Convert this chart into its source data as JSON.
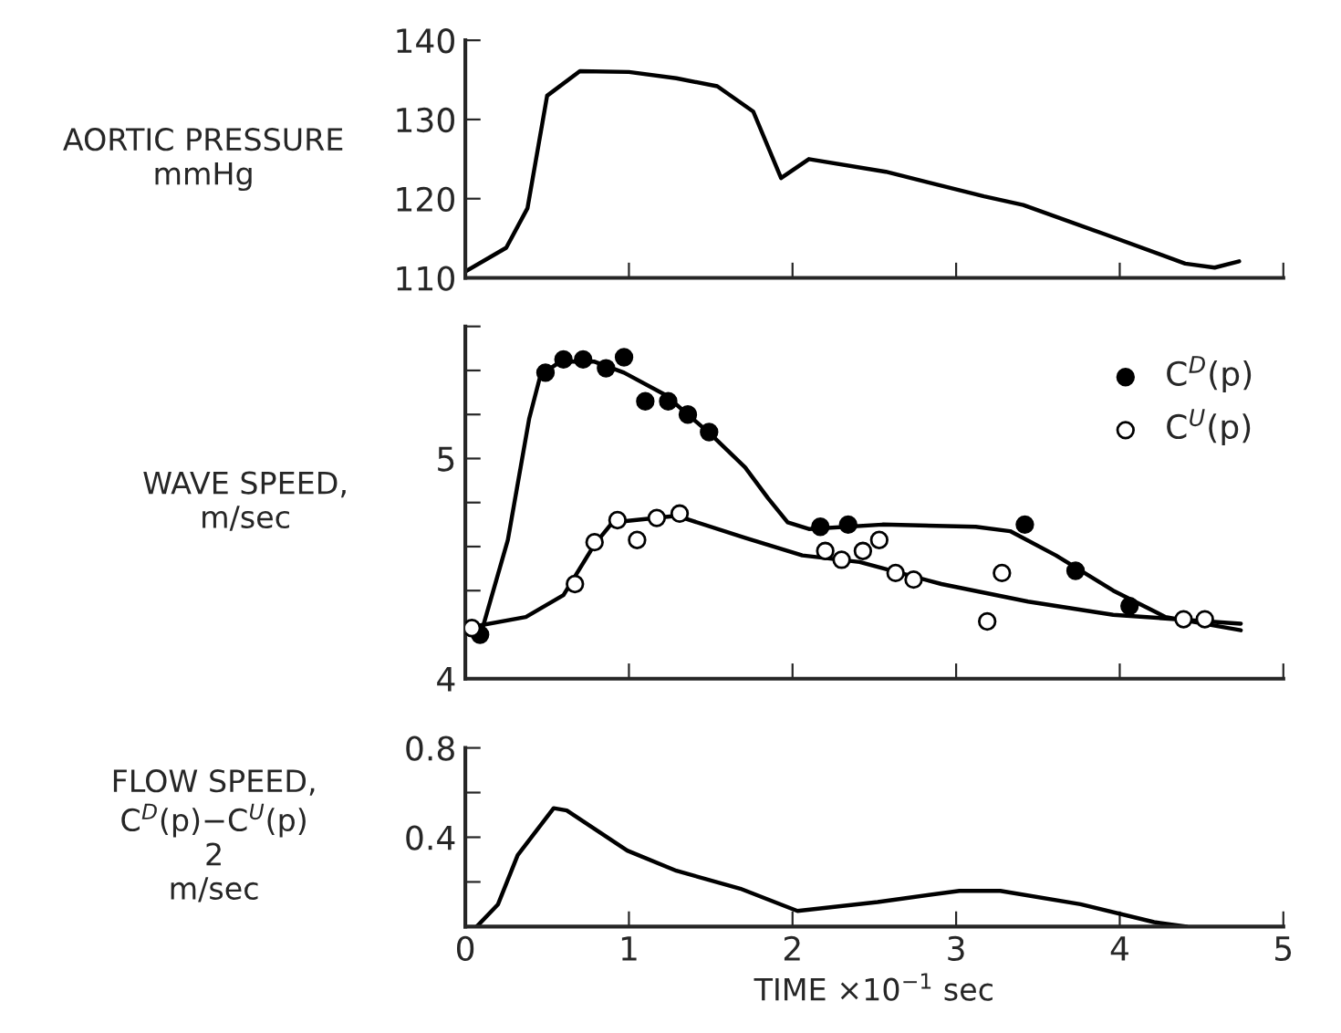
{
  "chart_data": [
    {
      "type": "line",
      "ylabel": "AORTIC PRESSURE\nmmHg",
      "xlim": [
        0,
        5
      ],
      "xticks": [
        {
          "value": 0,
          "label": null
        },
        {
          "value": 1,
          "label": null
        },
        {
          "value": 2,
          "label": null
        },
        {
          "value": 3,
          "label": null
        },
        {
          "value": 4,
          "label": null
        },
        {
          "value": 5,
          "label": null
        }
      ],
      "ylim": [
        110,
        140
      ],
      "yticks": [
        110,
        120,
        130,
        140
      ],
      "tick_labels": "y",
      "series": [
        {
          "color": "#000000",
          "x": [
            0,
            0.25,
            0.38,
            0.5,
            0.7,
            1.0,
            1.29,
            1.54,
            1.76,
            1.93,
            2.1,
            2.57,
            3.17,
            3.41,
            3.91,
            4.4,
            4.58,
            4.73
          ],
          "values": [
            110.8,
            113.8,
            118.8,
            133,
            136.1,
            136,
            135.2,
            134.2,
            131,
            122.6,
            125,
            123.4,
            120.3,
            119.2,
            115.5,
            111.8,
            111.3,
            112.1
          ]
        }
      ]
    },
    {
      "type": "line",
      "ylabel": "WAVE SPEED,\nm/sec",
      "xlim": [
        0,
        5
      ],
      "xticks": [
        {
          "value": 0,
          "label": null
        },
        {
          "value": 1,
          "label": null
        },
        {
          "value": 2,
          "label": null
        },
        {
          "value": 3,
          "label": null
        },
        {
          "value": 4,
          "label": null
        },
        {
          "value": 5,
          "label": null
        }
      ],
      "ylim": [
        4,
        5.6
      ],
      "yticks": [
        4,
        {
          "value": 4.2,
          "label": null
        },
        {
          "value": 4.4,
          "label": null
        },
        {
          "value": 4.6,
          "label": null
        },
        {
          "value": 4.8,
          "label": null
        },
        5,
        {
          "value": 5.2,
          "label": null
        },
        {
          "value": 5.4,
          "label": null
        },
        {
          "value": 5.6,
          "label": null
        }
      ],
      "tick_labels": "y",
      "legend": "top right",
      "series": [
        {
          "type": "scatter",
          "name": "C$^{D}$(p)",
          "color": "#000000",
          "marker": "circle",
          "x": [
            0.09,
            0.49,
            0.6,
            0.72,
            0.86,
            0.97,
            1.1,
            1.24,
            1.36,
            1.49,
            2.17,
            2.34,
            3.42,
            3.73,
            4.06
          ],
          "values": [
            4.2,
            5.39,
            5.45,
            5.45,
            5.41,
            5.46,
            5.26,
            5.26,
            5.2,
            5.12,
            4.69,
            4.7,
            4.7,
            4.49,
            4.33
          ]
        },
        {
          "type": "scatter",
          "name": "C$^{U}$(p)",
          "color": "#ffffff",
          "marker": "circle",
          "x": [
            0.04,
            0.67,
            0.79,
            0.93,
            1.05,
            1.17,
            1.31,
            2.2,
            2.3,
            2.43,
            2.53,
            2.63,
            2.74,
            3.19,
            3.28,
            4.39,
            4.52
          ],
          "values": [
            4.23,
            4.43,
            4.62,
            4.72,
            4.63,
            4.73,
            4.75,
            4.58,
            4.54,
            4.58,
            4.63,
            4.48,
            4.45,
            4.26,
            4.48,
            4.27,
            4.27
          ]
        },
        {
          "color": "#000000",
          "x": [
            0.09,
            0.26,
            0.39,
            0.46,
            0.58,
            0.79,
            0.97,
            1.22,
            1.5,
            1.71,
            1.85,
            1.97,
            2.1,
            2.55,
            3.12,
            3.33,
            3.61,
            3.96,
            4.28,
            4.74
          ],
          "values": [
            4.19,
            4.63,
            5.18,
            5.38,
            5.44,
            5.44,
            5.39,
            5.29,
            5.11,
            4.96,
            4.82,
            4.71,
            4.68,
            4.7,
            4.69,
            4.67,
            4.56,
            4.4,
            4.28,
            4.22
          ]
        },
        {
          "color": "#000000",
          "x": [
            0,
            0.37,
            0.6,
            0.79,
            0.9,
            1.29,
            1.71,
            2.06,
            2.41,
            2.91,
            3.44,
            3.96,
            4.74
          ],
          "values": [
            4.23,
            4.28,
            4.38,
            4.61,
            4.71,
            4.74,
            4.64,
            4.56,
            4.53,
            4.43,
            4.35,
            4.29,
            4.25
          ]
        }
      ]
    },
    {
      "type": "line",
      "ylabel": "FLOW SPEED,\nC$^{D}$(p)−C$^{U}$(p)\n2\nm/sec",
      "xlabel": "TIME ×10$^{−1}$ sec",
      "xlim": [
        0,
        5
      ],
      "xticks": [
        0,
        1,
        2,
        3,
        4,
        5
      ],
      "ylim": [
        0,
        0.8
      ],
      "yticks": [
        {
          "value": 0,
          "label": null
        },
        {
          "value": 0.2,
          "label": null
        },
        0.4,
        {
          "value": 0.6,
          "label": null
        },
        0.8
      ],
      "series": [
        {
          "color": "#000000",
          "x": [
            0.07,
            0.2,
            0.32,
            0.54,
            0.62,
            0.99,
            1.29,
            1.68,
            2.03,
            2.52,
            3.02,
            3.27,
            3.76,
            4.21,
            4.41
          ],
          "values": [
            0,
            0.1,
            0.32,
            0.53,
            0.52,
            0.34,
            0.25,
            0.17,
            0.07,
            0.11,
            0.16,
            0.16,
            0.1,
            0.02,
            0
          ]
        }
      ]
    }
  ]
}
